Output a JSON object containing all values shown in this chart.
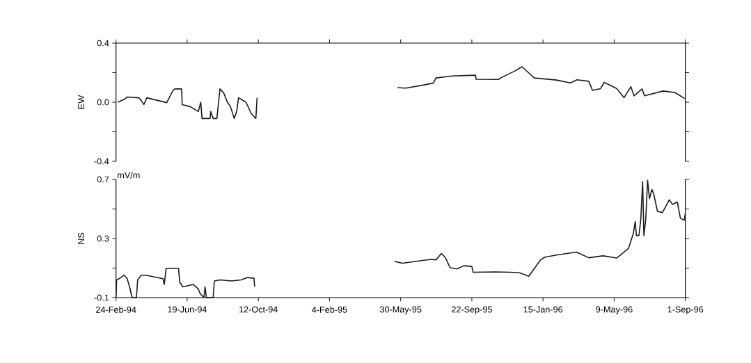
{
  "chart_data": [
    {
      "type": "line",
      "ylabel": "EW",
      "color": "#1a1a1a",
      "tick_labels": "y",
      "x": [
        "1994-02-27",
        "1994-03-11",
        "1994-03-14",
        "1994-04-02",
        "1994-04-06",
        "1994-04-10",
        "1994-04-15",
        "1994-05-17",
        "1994-05-27",
        "1994-05-30",
        "1994-06-10",
        "1994-06-11",
        "1994-06-24",
        "1994-07-07",
        "1994-07-11",
        "1994-07-13",
        "1994-07-26",
        "1994-07-27",
        "1994-07-31",
        "1994-08-06",
        "1994-08-11",
        "1994-08-17",
        "1994-08-23",
        "1994-08-28",
        "1994-09-03",
        "1994-09-07",
        "1994-09-10",
        "1994-09-22",
        "1994-10-01",
        "1994-10-08",
        "1994-10-10",
        "1995-01-01",
        "1995-05-25",
        "1995-06-07",
        "1995-07-07",
        "1995-07-22",
        "1995-07-26",
        "1995-08-21",
        "1995-09-28",
        "1995-09-29",
        "1995-11-04",
        "1995-11-10",
        "1995-11-30",
        "1995-12-12",
        "1996-01-01",
        "1996-02-06",
        "1996-02-28",
        "1996-03-10",
        "1996-03-29",
        "1996-04-04",
        "1996-04-17",
        "1996-04-23",
        "1996-05-13",
        "1996-05-25",
        "1996-06-05",
        "1996-06-10",
        "1996-06-23",
        "1996-06-27",
        "1996-07-27",
        "1996-08-15",
        "1996-08-31"
      ],
      "values": [
        0.0,
        0.024,
        0.035,
        0.03,
        0.01,
        -0.016,
        0.03,
        -0.003,
        0.08,
        0.09,
        0.09,
        -0.016,
        -0.03,
        -0.063,
        0.0,
        -0.11,
        -0.11,
        -0.063,
        -0.11,
        -0.11,
        0.09,
        0.063,
        0.0,
        -0.03,
        -0.11,
        -0.063,
        0.03,
        0.0,
        -0.08,
        -0.11,
        0.03,
        null,
        0.099,
        0.095,
        0.117,
        0.13,
        0.164,
        0.178,
        0.183,
        0.155,
        0.154,
        0.17,
        0.21,
        0.24,
        0.164,
        0.15,
        0.131,
        0.152,
        0.142,
        0.08,
        0.092,
        0.134,
        0.093,
        0.031,
        0.105,
        0.043,
        0.09,
        0.044,
        0.076,
        0.066,
        0.025
      ],
      "xlim": [
        "1994-02-24",
        "1996-09-01"
      ],
      "xticks": [
        {
          "value": "1994-02-24",
          "label": null
        },
        {
          "value": "1994-06-19",
          "label": null
        },
        {
          "value": "1994-10-12",
          "label": null
        },
        {
          "value": "1995-02-04",
          "label": null
        },
        {
          "value": "1995-05-30",
          "label": null
        },
        {
          "value": "1995-09-22",
          "label": null
        },
        {
          "value": "1996-01-15",
          "label": null
        },
        {
          "value": "1996-05-09",
          "label": null
        },
        {
          "value": "1996-09-01",
          "label": null
        }
      ],
      "ylim": [
        -0.4,
        0.4
      ],
      "yticks": [
        {
          "value": -0.4,
          "label": "-0.4"
        },
        {
          "value": -0.2,
          "label": null
        },
        {
          "value": 0.0,
          "label": "0.0"
        },
        {
          "value": 0.2,
          "label": null
        },
        {
          "value": 0.4,
          "label": "0.4"
        }
      ]
    },
    {
      "type": "line",
      "ylabel": "NS",
      "color": "#1a1a1a",
      "annotations": [
        "mV/m"
      ],
      "x": [
        "1994-02-24",
        "1994-02-25",
        "1994-03-01",
        "1994-03-09",
        "1994-03-14",
        "1994-03-18",
        "1994-03-22",
        "1994-03-29",
        "1994-03-31",
        "1994-04-06",
        "1994-04-13",
        "1994-05-11",
        "1994-05-13",
        "1994-05-16",
        "1994-06-05",
        "1994-06-07",
        "1994-06-12",
        "1994-06-29",
        "1994-07-07",
        "1994-07-10",
        "1994-07-16",
        "1994-07-18",
        "1994-07-20",
        "1994-07-31",
        "1994-08-02",
        "1994-08-11",
        "1994-08-30",
        "1994-09-14",
        "1994-09-25",
        "1994-10-05",
        "1994-10-06",
        "1995-01-01",
        "1995-05-20",
        "1995-06-02",
        "1995-06-26",
        "1995-07-18",
        "1995-07-26",
        "1995-08-04",
        "1995-08-10",
        "1995-08-18",
        "1995-08-29",
        "1995-09-09",
        "1995-09-22",
        "1995-09-24",
        "1995-10-30",
        "1995-11-23",
        "1995-12-08",
        "1995-12-23",
        "1996-01-11",
        "1996-01-18",
        "1996-02-06",
        "1996-03-09",
        "1996-03-29",
        "1996-04-21",
        "1996-05-13",
        "1996-06-01",
        "1996-06-09",
        "1996-06-12",
        "1996-06-14",
        "1996-06-18",
        "1996-06-21",
        "1996-06-24",
        "1996-06-26",
        "1996-06-29",
        "1996-07-02",
        "1996-07-05",
        "1996-07-09",
        "1996-07-12",
        "1996-07-18",
        "1996-07-26",
        "1996-07-31",
        "1996-08-06",
        "1996-08-11",
        "1996-08-19",
        "1996-08-24",
        "1996-08-30",
        "1996-09-01"
      ],
      "values": [
        -0.1,
        0.02,
        0.028,
        0.052,
        0.028,
        -0.027,
        -0.1,
        -0.1,
        0.02,
        0.052,
        0.052,
        0.028,
        -0.011,
        0.098,
        0.098,
        0.005,
        -0.027,
        -0.011,
        -0.042,
        -0.073,
        -0.1,
        -0.027,
        -0.1,
        -0.1,
        0.013,
        0.02,
        0.013,
        0.02,
        0.036,
        0.031,
        -0.027,
        null,
        0.145,
        0.133,
        0.147,
        0.159,
        0.156,
        0.199,
        0.172,
        0.102,
        0.094,
        0.116,
        0.111,
        0.072,
        0.074,
        0.072,
        0.068,
        0.045,
        0.155,
        0.174,
        0.188,
        0.208,
        0.17,
        0.183,
        0.168,
        0.232,
        0.334,
        0.415,
        0.32,
        0.32,
        0.428,
        0.685,
        0.32,
        0.427,
        0.694,
        0.57,
        0.632,
        0.6,
        0.484,
        0.476,
        0.515,
        0.562,
        0.531,
        0.547,
        0.438,
        0.423,
        0.47
      ],
      "xlim": [
        "1994-02-24",
        "1996-09-01"
      ],
      "xticks": [
        {
          "value": "1994-02-24",
          "label": "24-Feb-94"
        },
        {
          "value": "1994-06-19",
          "label": "19-Jun-94"
        },
        {
          "value": "1994-10-12",
          "label": "12-Oct-94"
        },
        {
          "value": "1995-02-04",
          "label": "4-Feb-95"
        },
        {
          "value": "1995-05-30",
          "label": "30-May-95"
        },
        {
          "value": "1995-09-22",
          "label": "22-Sep-95"
        },
        {
          "value": "1996-01-15",
          "label": "15-Jan-96"
        },
        {
          "value": "1996-05-09",
          "label": "9-May-96"
        },
        {
          "value": "1996-09-01",
          "label": "1-Sep-96"
        }
      ],
      "ylim": [
        -0.1,
        0.7
      ],
      "yticks": [
        {
          "value": -0.1,
          "label": "-0.1"
        },
        {
          "value": 0.1,
          "label": null
        },
        {
          "value": 0.3,
          "label": "0.3"
        },
        {
          "value": 0.5,
          "label": null
        },
        {
          "value": 0.7,
          "label": "0.7"
        }
      ]
    }
  ]
}
